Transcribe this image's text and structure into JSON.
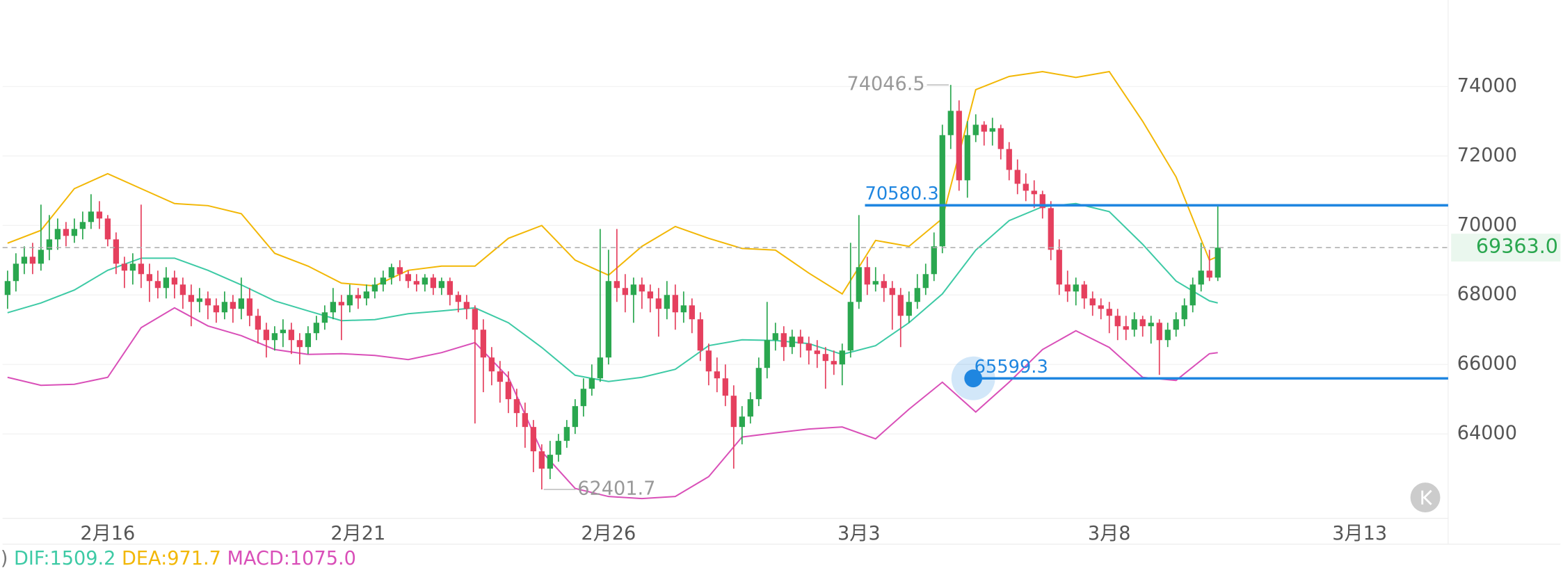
{
  "chart_data": {
    "type": "candlestick",
    "up_color": "#2aa74f",
    "down_color": "#e5405e",
    "xlim": [
      -0.6,
      172.6
    ],
    "xticks": [
      {
        "value": 12,
        "label": "2月16"
      },
      {
        "value": 42,
        "label": "2月21"
      },
      {
        "value": 72,
        "label": "2月26"
      },
      {
        "value": 102,
        "label": "3月3"
      },
      {
        "value": 132,
        "label": "3月8"
      },
      {
        "value": 162,
        "label": "3月13"
      }
    ],
    "ylim": [
      61570,
      76490
    ],
    "yticks": [
      64000,
      66000,
      68000,
      70000,
      72000,
      74000
    ],
    "grid": true,
    "candles": [
      [
        68000,
        68700,
        67600,
        68400
      ],
      [
        68400,
        69200,
        68100,
        68900
      ],
      [
        68900,
        69400,
        68600,
        69100
      ],
      [
        69100,
        69500,
        68600,
        68900
      ],
      [
        68900,
        70600,
        68700,
        69300
      ],
      [
        69300,
        70300,
        69000,
        69600
      ],
      [
        69600,
        70200,
        69300,
        69900
      ],
      [
        69900,
        70100,
        69400,
        69700
      ],
      [
        69700,
        70200,
        69500,
        69900
      ],
      [
        69900,
        70400,
        69600,
        70100
      ],
      [
        70100,
        70900,
        69900,
        70400
      ],
      [
        70400,
        70700,
        69900,
        70200
      ],
      [
        70200,
        70300,
        69400,
        69600
      ],
      [
        69600,
        69800,
        68600,
        68900
      ],
      [
        68900,
        69100,
        68200,
        68700
      ],
      [
        68700,
        69200,
        68300,
        68900
      ],
      [
        68900,
        70600,
        68200,
        68600
      ],
      [
        68600,
        68900,
        67800,
        68400
      ],
      [
        68400,
        68700,
        67900,
        68200
      ],
      [
        68200,
        68800,
        67900,
        68500
      ],
      [
        68500,
        68700,
        67900,
        68300
      ],
      [
        68300,
        68500,
        67600,
        68000
      ],
      [
        68000,
        68300,
        67100,
        67800
      ],
      [
        67800,
        68200,
        67500,
        67900
      ],
      [
        67900,
        68100,
        67300,
        67700
      ],
      [
        67700,
        67900,
        67200,
        67500
      ],
      [
        67500,
        68100,
        67300,
        67800
      ],
      [
        67800,
        68000,
        67200,
        67600
      ],
      [
        67600,
        68500,
        67300,
        67900
      ],
      [
        67900,
        68200,
        67100,
        67400
      ],
      [
        67400,
        67600,
        66600,
        67000
      ],
      [
        67000,
        67200,
        66200,
        66700
      ],
      [
        66700,
        67100,
        66400,
        66900
      ],
      [
        66900,
        67300,
        66500,
        67000
      ],
      [
        67000,
        67200,
        66300,
        66700
      ],
      [
        66700,
        66900,
        66000,
        66500
      ],
      [
        66500,
        67100,
        66300,
        66900
      ],
      [
        66900,
        67400,
        66700,
        67200
      ],
      [
        67200,
        67700,
        67000,
        67500
      ],
      [
        67500,
        68200,
        67300,
        67800
      ],
      [
        67800,
        68000,
        66700,
        67700
      ],
      [
        67700,
        68300,
        67500,
        68000
      ],
      [
        68000,
        68200,
        67600,
        67900
      ],
      [
        67900,
        68300,
        67700,
        68100
      ],
      [
        68100,
        68500,
        67900,
        68300
      ],
      [
        68300,
        68700,
        68100,
        68500
      ],
      [
        68500,
        68900,
        68300,
        68800
      ],
      [
        68800,
        69000,
        68400,
        68600
      ],
      [
        68600,
        68700,
        68200,
        68400
      ],
      [
        68400,
        68600,
        68100,
        68300
      ],
      [
        68300,
        68600,
        68100,
        68500
      ],
      [
        68500,
        68600,
        68000,
        68200
      ],
      [
        68200,
        68500,
        68000,
        68400
      ],
      [
        68400,
        68500,
        67700,
        68000
      ],
      [
        68000,
        68100,
        67500,
        67800
      ],
      [
        67800,
        68000,
        67300,
        67600
      ],
      [
        67600,
        67700,
        64300,
        67000
      ],
      [
        67000,
        67300,
        65200,
        66200
      ],
      [
        66200,
        66500,
        65400,
        65800
      ],
      [
        65800,
        66100,
        64900,
        65500
      ],
      [
        65500,
        65800,
        64600,
        65000
      ],
      [
        65000,
        65300,
        64200,
        64600
      ],
      [
        64600,
        64900,
        63600,
        64200
      ],
      [
        64200,
        64400,
        62900,
        63500
      ],
      [
        63500,
        63700,
        62401.7,
        63000
      ],
      [
        63000,
        63800,
        62700,
        63400
      ],
      [
        63400,
        64000,
        63200,
        63800
      ],
      [
        63800,
        64400,
        63600,
        64200
      ],
      [
        64200,
        65000,
        64000,
        64800
      ],
      [
        64800,
        65600,
        64500,
        65300
      ],
      [
        65300,
        66000,
        65100,
        65600
      ],
      [
        65600,
        69900,
        65500,
        66200
      ],
      [
        66200,
        69300,
        66000,
        68400
      ],
      [
        68400,
        69900,
        67800,
        68200
      ],
      [
        68200,
        68600,
        67500,
        68000
      ],
      [
        68000,
        68500,
        67200,
        68300
      ],
      [
        68300,
        68500,
        67600,
        68100
      ],
      [
        68100,
        68300,
        67500,
        67900
      ],
      [
        67900,
        68200,
        66800,
        67600
      ],
      [
        67600,
        68400,
        67300,
        68000
      ],
      [
        68000,
        68300,
        67000,
        67500
      ],
      [
        67500,
        68100,
        67200,
        67700
      ],
      [
        67700,
        67900,
        66900,
        67300
      ],
      [
        67300,
        67500,
        66100,
        66400
      ],
      [
        66400,
        66600,
        65400,
        65800
      ],
      [
        65800,
        66200,
        65200,
        65600
      ],
      [
        65600,
        66000,
        64800,
        65100
      ],
      [
        65100,
        65400,
        63000,
        64200
      ],
      [
        64200,
        64800,
        63700,
        64500
      ],
      [
        64500,
        65200,
        64300,
        65000
      ],
      [
        65000,
        66200,
        64800,
        65900
      ],
      [
        65900,
        67800,
        65600,
        66700
      ],
      [
        66700,
        67200,
        66400,
        66900
      ],
      [
        66900,
        67100,
        66100,
        66500
      ],
      [
        66500,
        67000,
        66300,
        66800
      ],
      [
        66800,
        67000,
        66200,
        66600
      ],
      [
        66600,
        66800,
        66000,
        66400
      ],
      [
        66400,
        66700,
        65900,
        66300
      ],
      [
        66300,
        66500,
        65300,
        66100
      ],
      [
        66100,
        66400,
        65700,
        66000
      ],
      [
        66000,
        66600,
        65400,
        66400
      ],
      [
        66400,
        69500,
        66200,
        67800
      ],
      [
        67800,
        70300,
        67600,
        68800
      ],
      [
        68800,
        69100,
        68000,
        68300
      ],
      [
        68300,
        68800,
        68100,
        68400
      ],
      [
        68400,
        68600,
        67800,
        68200
      ],
      [
        68200,
        68400,
        67000,
        68000
      ],
      [
        68000,
        68200,
        66500,
        67400
      ],
      [
        67400,
        68100,
        67200,
        67800
      ],
      [
        67800,
        68600,
        67600,
        68200
      ],
      [
        68200,
        68900,
        68000,
        68600
      ],
      [
        68600,
        69800,
        68400,
        69400
      ],
      [
        69400,
        72900,
        69200,
        72600
      ],
      [
        72600,
        74046.5,
        72200,
        73300
      ],
      [
        73300,
        73600,
        71000,
        71300
      ],
      [
        71300,
        73000,
        70800,
        72600
      ],
      [
        72600,
        73200,
        72400,
        72900
      ],
      [
        72900,
        73000,
        72300,
        72700
      ],
      [
        72700,
        73100,
        72300,
        72800
      ],
      [
        72800,
        72900,
        71900,
        72200
      ],
      [
        72200,
        72400,
        71300,
        71600
      ],
      [
        71600,
        71900,
        70900,
        71200
      ],
      [
        71200,
        71500,
        70700,
        71000
      ],
      [
        71000,
        71300,
        70500,
        70900
      ],
      [
        70900,
        71000,
        70200,
        70500
      ],
      [
        70500,
        70700,
        69000,
        69300
      ],
      [
        69300,
        69600,
        68000,
        68300
      ],
      [
        68300,
        68700,
        67800,
        68100
      ],
      [
        68100,
        68500,
        67700,
        68300
      ],
      [
        68300,
        68400,
        67600,
        67900
      ],
      [
        67900,
        68100,
        67400,
        67700
      ],
      [
        67700,
        67900,
        67300,
        67600
      ],
      [
        67600,
        67800,
        66900,
        67400
      ],
      [
        67400,
        67600,
        66700,
        67100
      ],
      [
        67100,
        67400,
        66700,
        67000
      ],
      [
        67000,
        67500,
        66800,
        67300
      ],
      [
        67300,
        67400,
        66800,
        67100
      ],
      [
        67100,
        67400,
        66600,
        67200
      ],
      [
        67200,
        67300,
        65700,
        66700
      ],
      [
        66700,
        67200,
        66500,
        67000
      ],
      [
        67000,
        67500,
        66800,
        67300
      ],
      [
        67300,
        67900,
        67100,
        67700
      ],
      [
        67700,
        68500,
        67500,
        68300
      ],
      [
        68300,
        69500,
        68100,
        68700
      ],
      [
        68700,
        69300,
        68400,
        68500
      ],
      [
        68500,
        70580.3,
        68400,
        69363.0
      ]
    ],
    "band_x": [
      0,
      4,
      8,
      12,
      16,
      20,
      24,
      28,
      32,
      36,
      40,
      44,
      48,
      52,
      56,
      60,
      64,
      68,
      72,
      76,
      80,
      84,
      88,
      92,
      96,
      100,
      104,
      108,
      112,
      116,
      120,
      124,
      128,
      132,
      136,
      140,
      144,
      145
    ],
    "bands": [
      {
        "color": "#f2b705",
        "values": [
          69490,
          69860,
          71060,
          71490,
          71060,
          70630,
          70570,
          70340,
          69200,
          68830,
          68340,
          68260,
          68710,
          68830,
          68830,
          69630,
          70000,
          69000,
          68570,
          69400,
          69970,
          69630,
          69340,
          69290,
          68630,
          68030,
          69570,
          69400,
          70200,
          73910,
          74290,
          74430,
          74260,
          74430,
          73000,
          71400,
          69000,
          69110
        ]
      },
      {
        "color": "#3dcaa5",
        "values": [
          67490,
          67770,
          68140,
          68710,
          69060,
          69060,
          68710,
          68290,
          67830,
          67540,
          67260,
          67290,
          67460,
          67540,
          67630,
          67200,
          66490,
          65690,
          65510,
          65630,
          65860,
          66540,
          66710,
          66690,
          66600,
          66290,
          66540,
          67200,
          68030,
          69290,
          70140,
          70540,
          70630,
          70400,
          69460,
          68400,
          67830,
          67770
        ]
      },
      {
        "color": "#d94fb8",
        "values": [
          65630,
          65400,
          65430,
          65630,
          67060,
          67630,
          67110,
          66830,
          66430,
          66290,
          66310,
          66260,
          66140,
          66340,
          66630,
          65630,
          63490,
          62430,
          62200,
          62140,
          62200,
          62770,
          63910,
          64030,
          64140,
          64200,
          63860,
          64710,
          65490,
          64630,
          65490,
          66430,
          66970,
          66490,
          65630,
          65540,
          66310,
          66340
        ]
      }
    ],
    "price_lines": [
      70580.3,
      65599.3
    ],
    "price_line_color": "#1f86e0",
    "last_price": {
      "value": 69363.0,
      "label": "69363.0"
    },
    "last_price_color": "#2aa74f",
    "high_label": 74046.5,
    "low_label": 62401.7,
    "indicator": {
      "prefix": ")",
      "items": [
        {
          "text": "DIF:1509.2",
          "color": "#3dcaa5"
        },
        {
          "text": "DEA:971.7",
          "color": "#f2b705"
        },
        {
          "text": "MACD:1075.0",
          "color": "#d94fb8"
        }
      ]
    }
  }
}
